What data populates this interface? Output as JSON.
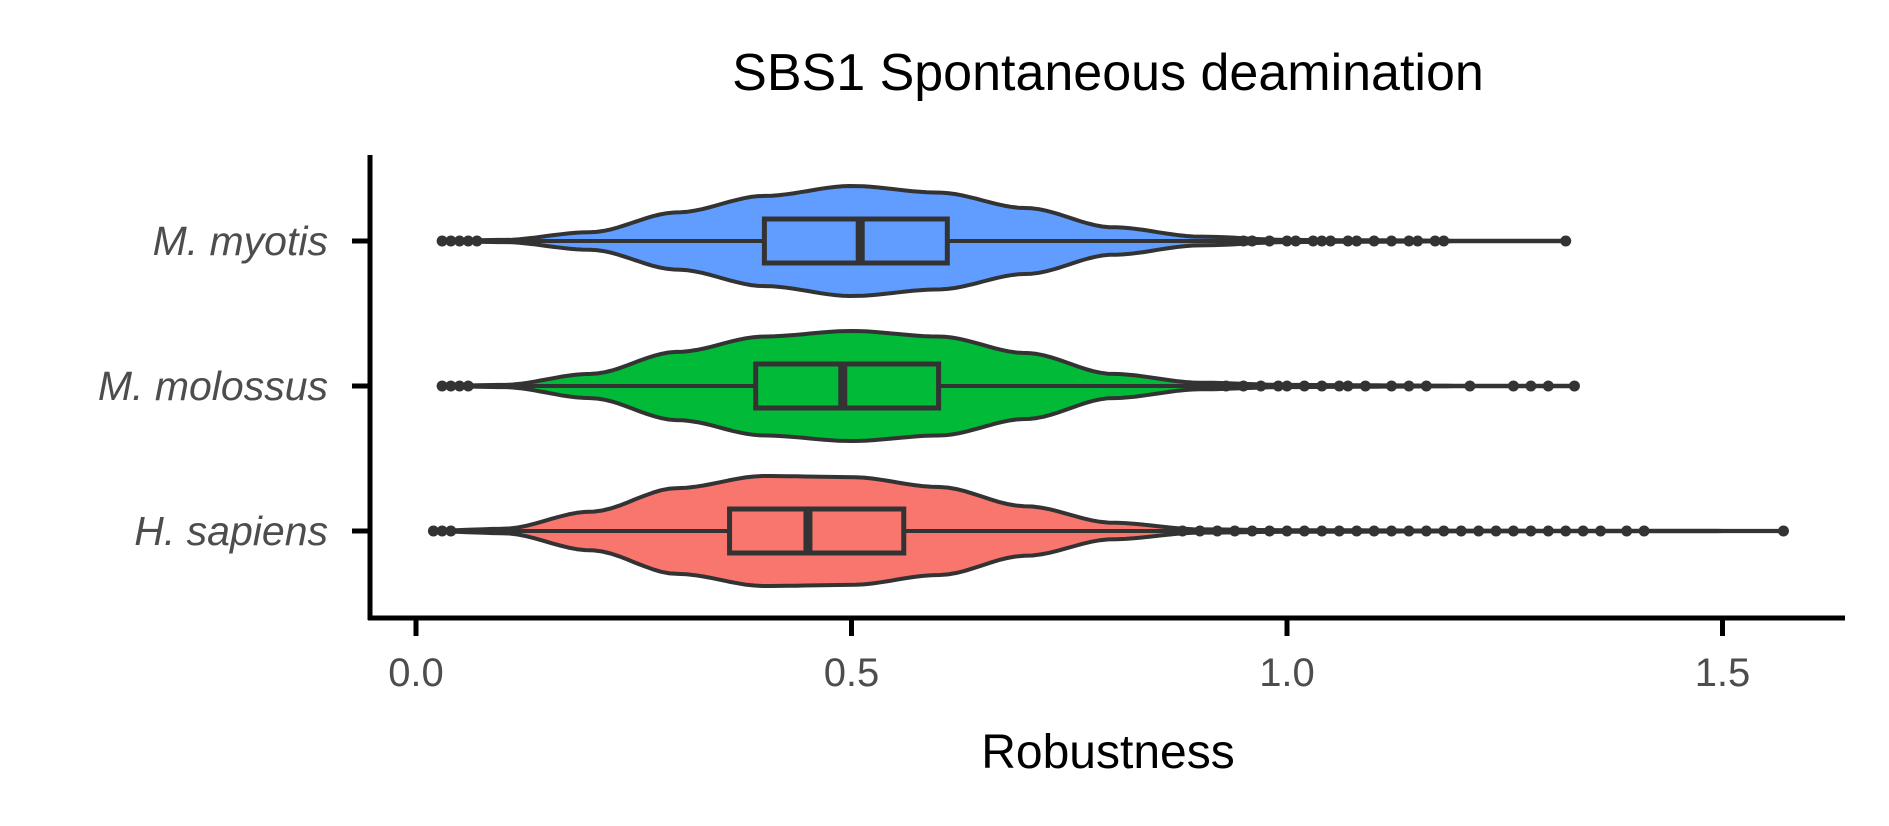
{
  "chart_data": {
    "type": "violin",
    "title": "SBS1 Spontaneous deamination",
    "xlabel": "Robustness",
    "ylabel": "",
    "xlim": [
      -0.05,
      1.65
    ],
    "xticks": [
      0.0,
      0.5,
      1.0,
      1.5
    ],
    "xtick_labels": [
      "0.0",
      "0.5",
      "1.0",
      "1.5"
    ],
    "categories": [
      "M. myotis",
      "M. molossus",
      "H. sapiens"
    ],
    "grid": false,
    "legend": "none",
    "series": [
      {
        "category": "M. myotis",
        "color": "#619CFF",
        "min": 0.03,
        "q1": 0.4,
        "median": 0.51,
        "q3": 0.61,
        "max": 1.32,
        "whisker_low": 0.08,
        "whisker_high": 0.92,
        "outliers": [
          0.03,
          0.04,
          0.05,
          0.06,
          0.07,
          0.93,
          0.95,
          0.96,
          0.98,
          1.0,
          1.01,
          1.03,
          1.04,
          1.05,
          1.07,
          1.08,
          1.1,
          1.12,
          1.14,
          1.15,
          1.17,
          1.18,
          1.32
        ],
        "density": [
          [
            0.03,
            0.005
          ],
          [
            0.1,
            0.02
          ],
          [
            0.2,
            0.16
          ],
          [
            0.3,
            0.52
          ],
          [
            0.4,
            0.82
          ],
          [
            0.5,
            1.0
          ],
          [
            0.6,
            0.88
          ],
          [
            0.7,
            0.6
          ],
          [
            0.8,
            0.25
          ],
          [
            0.9,
            0.08
          ],
          [
            1.0,
            0.02
          ],
          [
            1.1,
            0.012
          ],
          [
            1.2,
            0.006
          ],
          [
            1.32,
            0.003
          ]
        ]
      },
      {
        "category": "M. molossus",
        "color": "#00BA38",
        "min": 0.03,
        "q1": 0.39,
        "median": 0.49,
        "q3": 0.6,
        "max": 1.33,
        "whisker_low": 0.07,
        "whisker_high": 0.92,
        "outliers": [
          0.03,
          0.04,
          0.05,
          0.06,
          0.93,
          0.95,
          0.97,
          0.99,
          1.0,
          1.02,
          1.04,
          1.06,
          1.07,
          1.09,
          1.12,
          1.14,
          1.16,
          1.21,
          1.26,
          1.28,
          1.3,
          1.33
        ],
        "density": [
          [
            0.03,
            0.005
          ],
          [
            0.1,
            0.02
          ],
          [
            0.2,
            0.22
          ],
          [
            0.3,
            0.62
          ],
          [
            0.4,
            0.9
          ],
          [
            0.5,
            1.0
          ],
          [
            0.6,
            0.9
          ],
          [
            0.7,
            0.6
          ],
          [
            0.8,
            0.22
          ],
          [
            0.9,
            0.06
          ],
          [
            1.0,
            0.02
          ],
          [
            1.1,
            0.012
          ],
          [
            1.2,
            0.006
          ],
          [
            1.33,
            0.003
          ]
        ]
      },
      {
        "category": "H. sapiens",
        "color": "#F8766D",
        "min": 0.02,
        "q1": 0.36,
        "median": 0.45,
        "q3": 0.56,
        "max": 1.57,
        "whisker_low": 0.05,
        "whisker_high": 0.87,
        "outliers": [
          0.02,
          0.03,
          0.04,
          0.88,
          0.9,
          0.92,
          0.94,
          0.96,
          0.98,
          1.0,
          1.02,
          1.04,
          1.06,
          1.08,
          1.1,
          1.12,
          1.14,
          1.16,
          1.18,
          1.2,
          1.22,
          1.24,
          1.26,
          1.28,
          1.3,
          1.32,
          1.34,
          1.36,
          1.39,
          1.41,
          1.57
        ],
        "density": [
          [
            0.02,
            0.005
          ],
          [
            0.1,
            0.04
          ],
          [
            0.2,
            0.35
          ],
          [
            0.3,
            0.78
          ],
          [
            0.4,
            1.0
          ],
          [
            0.5,
            0.98
          ],
          [
            0.6,
            0.8
          ],
          [
            0.7,
            0.45
          ],
          [
            0.8,
            0.15
          ],
          [
            0.9,
            0.03
          ],
          [
            1.0,
            0.015
          ],
          [
            1.2,
            0.008
          ],
          [
            1.4,
            0.004
          ],
          [
            1.57,
            0.002
          ]
        ]
      }
    ]
  }
}
